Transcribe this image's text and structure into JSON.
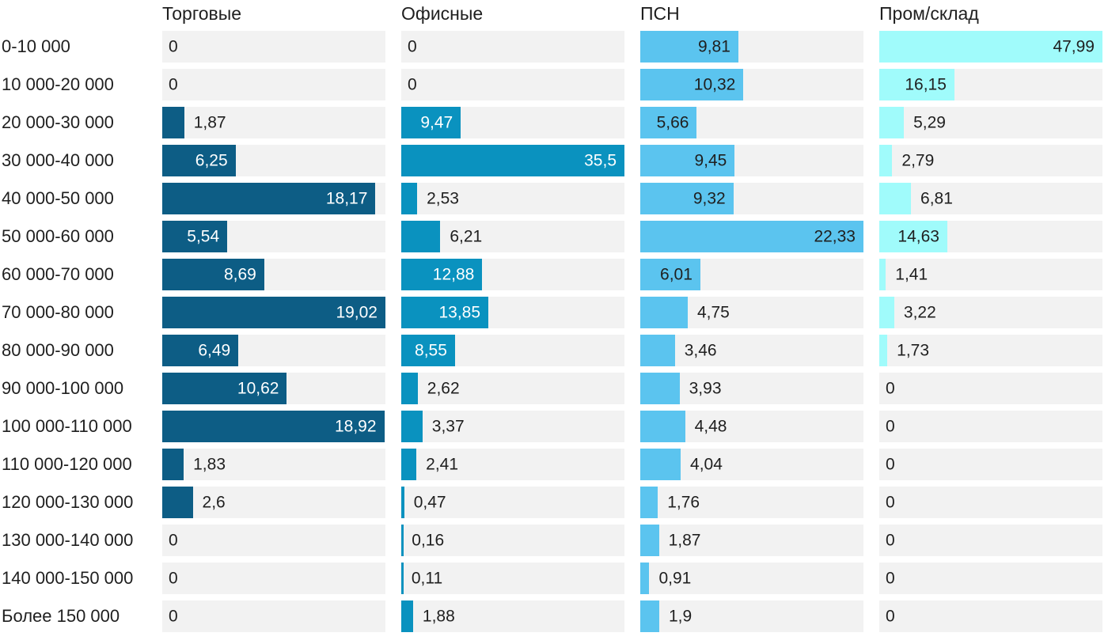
{
  "chart_data": {
    "type": "bar",
    "orientation": "horizontal",
    "title": "",
    "value_decimal_separator": ",",
    "grid": false,
    "legend_position": "column-headers-top",
    "track_color": "#f2f2f2",
    "text_color": "#1f1f1f",
    "background": "#ffffff",
    "categories": [
      "0-10 000",
      "10 000-20 000",
      "20 000-30 000",
      "30 000-40 000",
      "40 000-50 000",
      "50 000-60 000",
      "60 000-70 000",
      "70 000-80 000",
      "80 000-90 000",
      "90 000-100 000",
      "100 000-110 000",
      "110 000-120 000",
      "120 000-130 000",
      "130 000-140 000",
      "140 000-150 000",
      "Более 150 000"
    ],
    "series": [
      {
        "name": "Торговые",
        "color": "#0d5d85",
        "label_color_inside": "#ffffff",
        "axis_max": 19.02,
        "values": [
          0,
          0,
          1.87,
          6.25,
          18.17,
          5.54,
          8.69,
          19.02,
          6.49,
          10.62,
          18.92,
          1.83,
          2.6,
          0,
          0,
          0
        ],
        "labels": [
          "0",
          "0",
          "1,87",
          "6,25",
          "18,17",
          "5,54",
          "8,69",
          "19,02",
          "6,49",
          "10,62",
          "18,92",
          "1,83",
          "2,6",
          "0",
          "0",
          "0"
        ]
      },
      {
        "name": "Офисные",
        "color": "#0a92bf",
        "label_color_inside": "#ffffff",
        "axis_max": 35.5,
        "values": [
          0,
          0,
          9.47,
          35.5,
          2.53,
          6.21,
          12.88,
          13.85,
          8.55,
          2.62,
          3.37,
          2.41,
          0.47,
          0.16,
          0.11,
          1.88
        ],
        "labels": [
          "0",
          "0",
          "9,47",
          "35,5",
          "2,53",
          "6,21",
          "12,88",
          "13,85",
          "8,55",
          "2,62",
          "3,37",
          "2,41",
          "0,47",
          "0,16",
          "0,11",
          "1,88"
        ]
      },
      {
        "name": "ПСН",
        "color": "#5bc4ef",
        "label_color_inside": "#1f1f1f",
        "axis_max": 22.33,
        "values": [
          9.81,
          10.32,
          5.66,
          9.45,
          9.32,
          22.33,
          6.01,
          4.75,
          3.46,
          3.93,
          4.48,
          4.04,
          1.76,
          1.87,
          0.91,
          1.9
        ],
        "labels": [
          "9,81",
          "10,32",
          "5,66",
          "9,45",
          "9,32",
          "22,33",
          "6,01",
          "4,75",
          "3,46",
          "3,93",
          "4,48",
          "4,04",
          "1,76",
          "1,87",
          "0,91",
          "1,9"
        ]
      },
      {
        "name": "Пром/склад",
        "color": "#a0fbfb",
        "label_color_inside": "#1f1f1f",
        "axis_max": 47.99,
        "values": [
          47.99,
          16.15,
          5.29,
          2.79,
          6.81,
          14.63,
          1.41,
          3.22,
          1.73,
          0,
          0,
          0,
          0,
          0,
          0,
          0
        ],
        "labels": [
          "47,99",
          "16,15",
          "5,29",
          "2,79",
          "6,81",
          "14,63",
          "1,41",
          "3,22",
          "1,73",
          "0",
          "0",
          "0",
          "0",
          "0",
          "0",
          "0"
        ]
      }
    ]
  }
}
